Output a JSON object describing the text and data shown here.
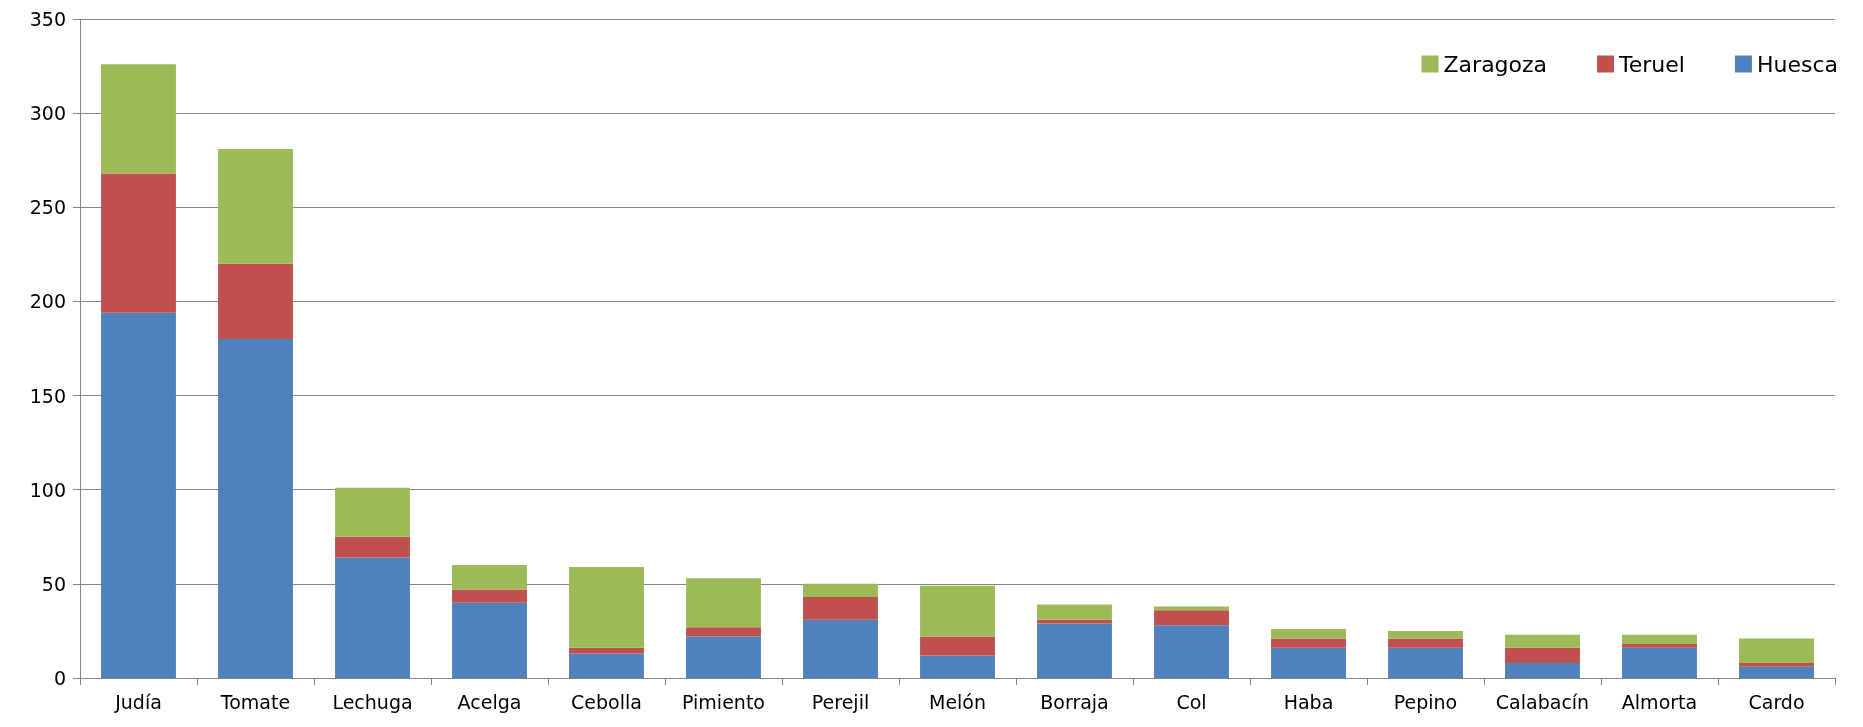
{
  "chart_data": {
    "type": "bar",
    "stacked": true,
    "categories": [
      "Judía",
      "Tomate",
      "Lechuga",
      "Acelga",
      "Cebolla",
      "Pimiento",
      "Perejil",
      "Melón",
      "Borraja",
      "Col",
      "Haba",
      "Pepino",
      "Calabacín",
      "Almorta",
      "Cardo"
    ],
    "series": [
      {
        "name": "Huesca",
        "color": "#4f81bd",
        "values": [
          194,
          180,
          64,
          40,
          13,
          22,
          31,
          12,
          29,
          28,
          16,
          16,
          8,
          16,
          6
        ]
      },
      {
        "name": "Teruel",
        "color": "#c0504d",
        "values": [
          74,
          40,
          11,
          7,
          3,
          5,
          12,
          10,
          2,
          8,
          5,
          5,
          8,
          2,
          2
        ]
      },
      {
        "name": "Zaragoza",
        "color": "#9bbb59",
        "values": [
          58,
          61,
          26,
          13,
          43,
          26,
          7,
          27,
          8,
          2,
          5,
          4,
          7,
          5,
          13
        ]
      }
    ],
    "ylim": [
      0,
      350
    ],
    "yticks": [
      0,
      50,
      100,
      150,
      200,
      250,
      300,
      350
    ],
    "grid": "y",
    "legend": "top right"
  }
}
